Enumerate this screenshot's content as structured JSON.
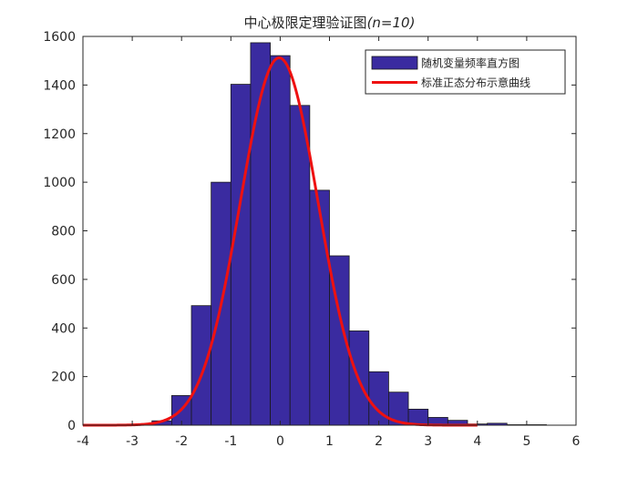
{
  "chart_data": {
    "type": "bar",
    "title": "中心极限定理验证图",
    "title_suffix": "(n=10)",
    "xlabel": "",
    "ylabel": "",
    "xlim": [
      -4,
      6
    ],
    "ylim": [
      0,
      1600
    ],
    "xticks": [
      "-4",
      "-3",
      "-2",
      "-1",
      "0",
      "1",
      "2",
      "3",
      "4",
      "5",
      "6"
    ],
    "yticks": [
      "0",
      "200",
      "400",
      "600",
      "800",
      "1000",
      "1200",
      "1400",
      "1600"
    ],
    "grid": false,
    "legend_position": "top-right",
    "series": [
      {
        "name": "随机变量频率直方图",
        "kind": "histogram",
        "color": "#3a2ba0",
        "edge_color": "#1a1a1a",
        "bin_edges": [
          -2.6,
          -2.2,
          -1.8,
          -1.4,
          -1.0,
          -0.6,
          -0.2,
          0.2,
          0.6,
          1.0,
          1.4,
          1.8,
          2.2,
          2.6,
          3.0,
          3.4,
          3.8,
          4.2,
          4.6,
          5.0,
          5.4
        ],
        "values": [
          18,
          122,
          492,
          1000,
          1403,
          1574,
          1521,
          1316,
          967,
          697,
          388,
          220,
          136,
          66,
          32,
          20,
          5,
          8,
          2,
          2
        ]
      },
      {
        "name": "标准正态分布示意曲线",
        "kind": "line",
        "color": "#ee1111",
        "peak": 1512,
        "mean": -0.02,
        "sd": 0.79,
        "x_range": [
          -4,
          4
        ]
      }
    ]
  }
}
